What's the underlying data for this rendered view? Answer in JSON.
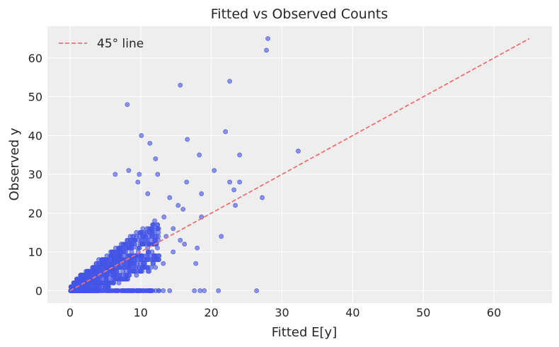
{
  "chart_data": {
    "type": "scatter",
    "title": "Fitted vs Observed Counts",
    "xlabel": "Fitted E[y]",
    "ylabel": "Observed y",
    "xlim": [
      -3.2,
      68.2
    ],
    "ylim": [
      -3.2,
      68.2
    ],
    "xticks": [
      0,
      10,
      20,
      30,
      40,
      50,
      60
    ],
    "yticks": [
      0,
      10,
      20,
      30,
      40,
      50,
      60
    ],
    "grid": true,
    "legend_position": "top-left",
    "colors": {
      "background": "#eeeeee",
      "grid": "#ffffff",
      "points": "#4455e6",
      "reference_line": "#f07070"
    },
    "reference_line": {
      "name": "45° line",
      "x": [
        0,
        65
      ],
      "y": [
        0,
        65
      ],
      "style": "dashed"
    },
    "series": [
      {
        "outliers": [
          [
            28.0,
            65
          ],
          [
            27.8,
            62
          ],
          [
            15.6,
            53
          ],
          [
            22.6,
            54
          ],
          [
            8.1,
            48
          ],
          [
            10.1,
            40
          ],
          [
            11.3,
            38
          ],
          [
            16.6,
            39
          ],
          [
            22.0,
            41
          ],
          [
            32.3,
            36
          ],
          [
            12.1,
            34
          ],
          [
            24.0,
            35
          ],
          [
            18.3,
            35
          ],
          [
            8.3,
            31
          ],
          [
            20.4,
            31
          ],
          [
            6.4,
            30
          ],
          [
            9.8,
            30
          ],
          [
            12.4,
            30
          ],
          [
            22.6,
            28
          ],
          [
            24.0,
            28
          ],
          [
            23.2,
            26
          ],
          [
            27.2,
            24
          ],
          [
            18.6,
            25
          ],
          [
            23.4,
            22
          ],
          [
            21.4,
            14
          ],
          [
            17.8,
            7
          ],
          [
            26.4,
            0
          ],
          [
            21.0,
            0
          ],
          [
            19.0,
            0
          ],
          [
            18.4,
            0
          ],
          [
            17.6,
            0
          ],
          [
            14.1,
            0
          ],
          [
            13.2,
            0
          ],
          [
            12.6,
            0
          ],
          [
            16.0,
            21
          ],
          [
            14.1,
            24
          ],
          [
            15.3,
            22
          ],
          [
            13.3,
            19
          ],
          [
            14.6,
            16
          ],
          [
            13.6,
            14
          ],
          [
            15.6,
            13
          ],
          [
            16.2,
            12
          ],
          [
            14.6,
            10
          ],
          [
            12.6,
            9
          ],
          [
            13.2,
            7
          ],
          [
            18.6,
            19
          ],
          [
            18.0,
            11
          ],
          [
            16.5,
            28
          ],
          [
            11.0,
            25
          ],
          [
            9.6,
            28
          ]
        ]
      }
    ]
  }
}
